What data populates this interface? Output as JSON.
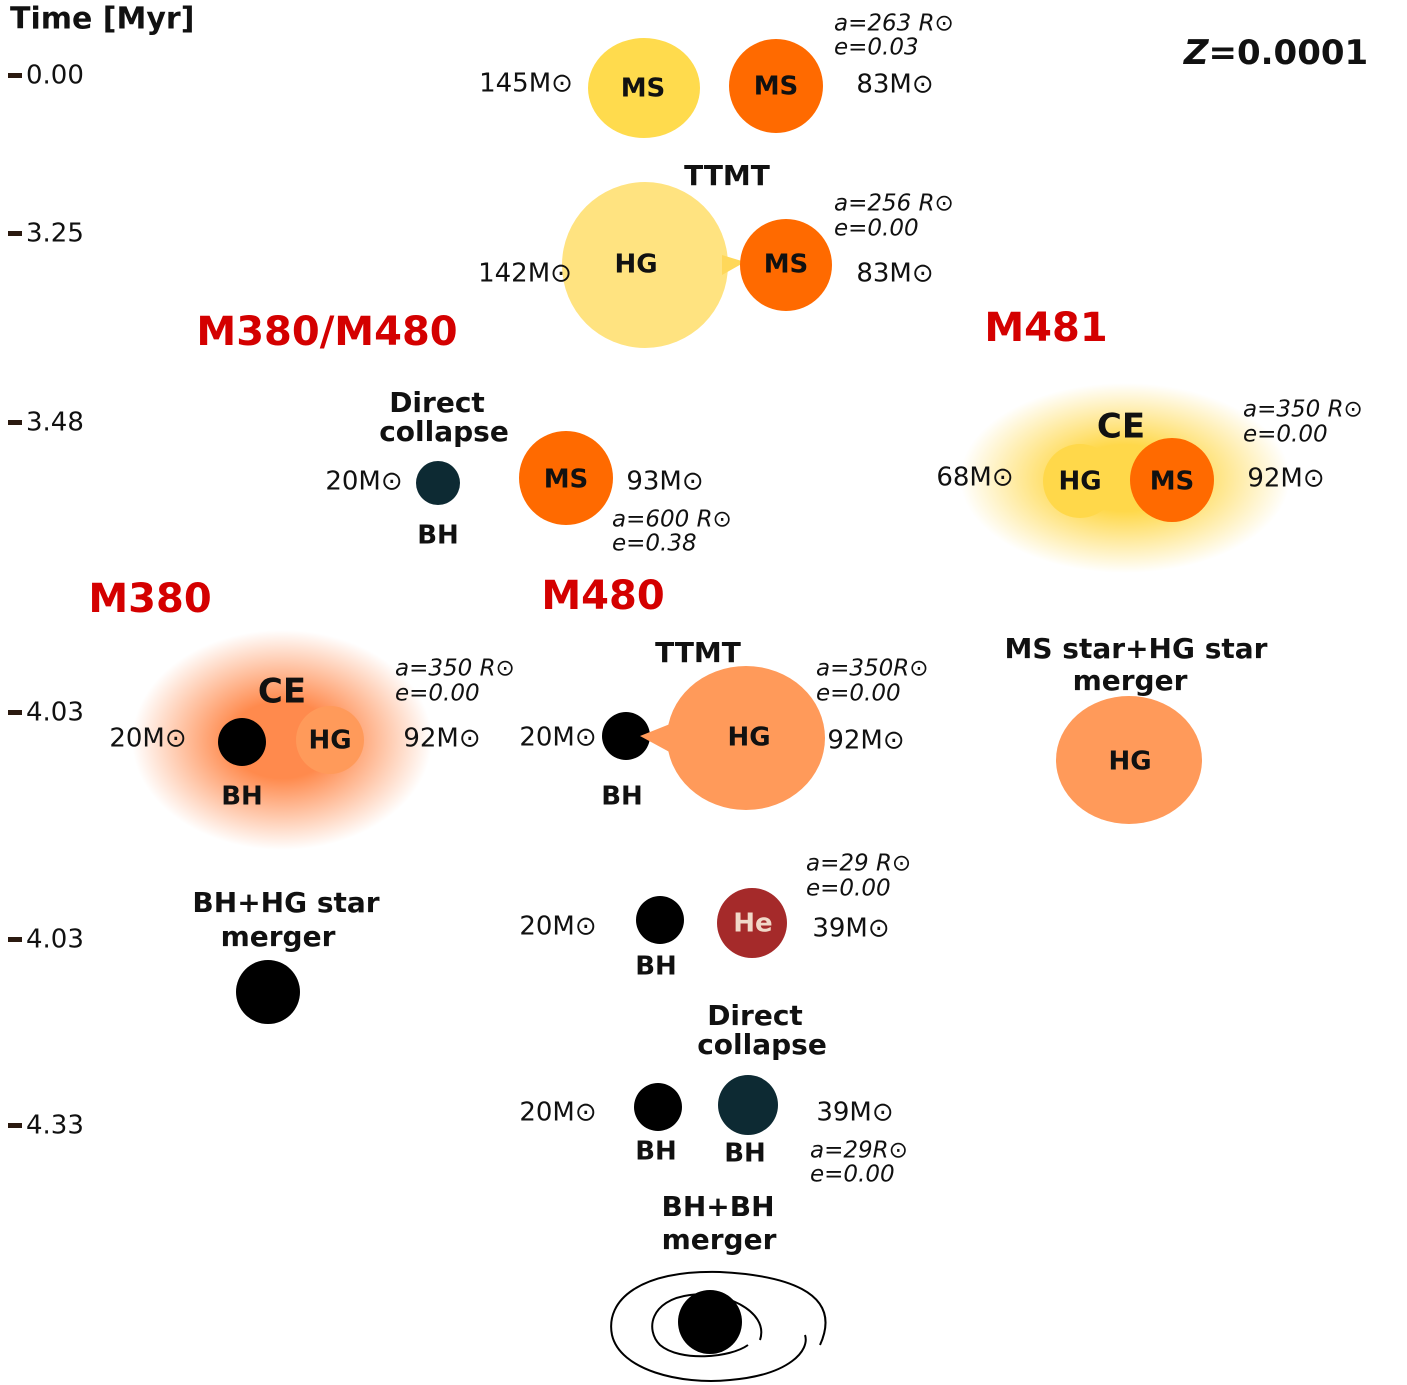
{
  "axis": {
    "title": "Time [Myr]",
    "ticks": [
      "0.00",
      "3.25",
      "3.48",
      "4.03",
      "4.03",
      "4.33"
    ]
  },
  "metallicity": {
    "symbol": "Z",
    "value": "=0.0001"
  },
  "channels": [
    "M380/M480",
    "M481",
    "M380",
    "M480"
  ],
  "stages": [
    {
      "masses": [
        "145M⊙",
        "83M⊙"
      ],
      "stars": [
        "MS",
        "MS"
      ],
      "orbit": [
        "a=263 R⊙",
        "e=0.03"
      ]
    },
    {
      "event": [
        "TTMT"
      ],
      "masses": [
        "142M⊙",
        "83M⊙"
      ],
      "stars": [
        "HG",
        "MS"
      ],
      "orbit": [
        "a=256 R⊙",
        "e=0.00"
      ]
    },
    {
      "event": [
        "Direct",
        "collapse"
      ],
      "masses": [
        "20M⊙",
        "93M⊙"
      ],
      "stars": [
        "BH",
        "MS"
      ],
      "orbit": [
        "a=600 R⊙",
        "e=0.38"
      ]
    },
    {
      "event": [
        "CE"
      ],
      "masses": [
        "68M⊙",
        "92M⊙"
      ],
      "stars": [
        "HG",
        "MS"
      ],
      "orbit": [
        "a=350 R⊙",
        "e=0.00"
      ]
    },
    {
      "event": [
        "CE"
      ],
      "masses": [
        "20M⊙",
        "92M⊙"
      ],
      "stars": [
        "BH",
        "HG"
      ],
      "orbit": [
        "a=350 R⊙",
        "e=0.00"
      ]
    },
    {
      "event": [
        "TTMT"
      ],
      "masses": [
        "20M⊙",
        "92M⊙"
      ],
      "stars": [
        "BH",
        "HG"
      ],
      "orbit": [
        "a=350R⊙",
        "e=0.00"
      ]
    },
    {
      "event": [
        "MS star+HG star",
        "merger"
      ],
      "stars": [
        "HG"
      ]
    },
    {
      "event": [
        "BH+HG star",
        "merger"
      ]
    },
    {
      "masses": [
        "20M⊙",
        "39M⊙"
      ],
      "stars": [
        "BH",
        "He"
      ],
      "orbit": [
        "a=29 R⊙",
        "e=0.00"
      ]
    },
    {
      "event": [
        "Direct",
        "collapse"
      ],
      "masses": [
        "20M⊙",
        "39M⊙"
      ],
      "stars": [
        "BH",
        "BH"
      ],
      "orbit": [
        "a=29R⊙",
        "e=0.00"
      ]
    },
    {
      "event": [
        "BH+BH",
        "merger"
      ]
    }
  ]
}
